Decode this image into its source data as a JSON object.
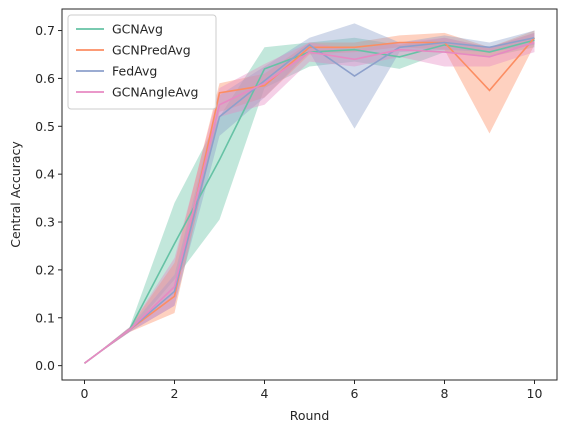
{
  "chart_data": {
    "type": "line",
    "xlabel": "Round",
    "ylabel": "Central Accuracy",
    "xlim": [
      -0.5,
      10.5
    ],
    "ylim": [
      -0.03,
      0.745
    ],
    "x_ticks": [
      0,
      2,
      4,
      6,
      8,
      10
    ],
    "y_ticks": [
      0.0,
      0.1,
      0.2,
      0.3,
      0.4,
      0.5,
      0.6,
      0.7
    ],
    "y_tick_labels": [
      "0.0",
      "0.1",
      "0.2",
      "0.3",
      "0.4",
      "0.5",
      "0.6",
      "0.7"
    ],
    "grid": false,
    "legend_position": "upper left",
    "x": [
      0,
      1,
      2,
      3,
      4,
      5,
      6,
      7,
      8,
      9,
      10
    ],
    "series": [
      {
        "name": "GCNAvg",
        "color": "#66c2a5",
        "values": [
          0.005,
          0.075,
          0.255,
          0.43,
          0.62,
          0.655,
          0.66,
          0.645,
          0.67,
          0.655,
          0.68
        ],
        "lower": [
          0.005,
          0.07,
          0.18,
          0.305,
          0.58,
          0.625,
          0.635,
          0.62,
          0.655,
          0.645,
          0.665
        ],
        "upper": [
          0.005,
          0.08,
          0.34,
          0.52,
          0.665,
          0.675,
          0.685,
          0.67,
          0.685,
          0.665,
          0.695
        ]
      },
      {
        "name": "GCNPredAvg",
        "color": "#fc8d62",
        "values": [
          0.005,
          0.075,
          0.145,
          0.57,
          0.585,
          0.665,
          0.665,
          0.675,
          0.675,
          0.575,
          0.685
        ],
        "lower": [
          0.005,
          0.07,
          0.11,
          0.53,
          0.56,
          0.65,
          0.655,
          0.665,
          0.66,
          0.485,
          0.67
        ],
        "upper": [
          0.005,
          0.08,
          0.215,
          0.59,
          0.61,
          0.675,
          0.675,
          0.69,
          0.695,
          0.665,
          0.7
        ]
      },
      {
        "name": "FedAvg",
        "color": "#8da0cb",
        "values": [
          0.005,
          0.075,
          0.155,
          0.52,
          0.595,
          0.67,
          0.605,
          0.665,
          0.675,
          0.665,
          0.685
        ],
        "lower": [
          0.005,
          0.07,
          0.125,
          0.48,
          0.56,
          0.655,
          0.495,
          0.655,
          0.66,
          0.655,
          0.67
        ],
        "upper": [
          0.005,
          0.08,
          0.19,
          0.565,
          0.625,
          0.685,
          0.715,
          0.675,
          0.69,
          0.675,
          0.7
        ]
      },
      {
        "name": "GCNAngleAvg",
        "color": "#e78ac3",
        "values": [
          0.005,
          0.075,
          0.165,
          0.545,
          0.59,
          0.655,
          0.64,
          0.66,
          0.655,
          0.645,
          0.675
        ],
        "lower": [
          0.005,
          0.07,
          0.125,
          0.52,
          0.545,
          0.635,
          0.625,
          0.645,
          0.625,
          0.625,
          0.655
        ],
        "upper": [
          0.005,
          0.08,
          0.225,
          0.58,
          0.63,
          0.675,
          0.66,
          0.675,
          0.685,
          0.665,
          0.695
        ]
      }
    ]
  }
}
